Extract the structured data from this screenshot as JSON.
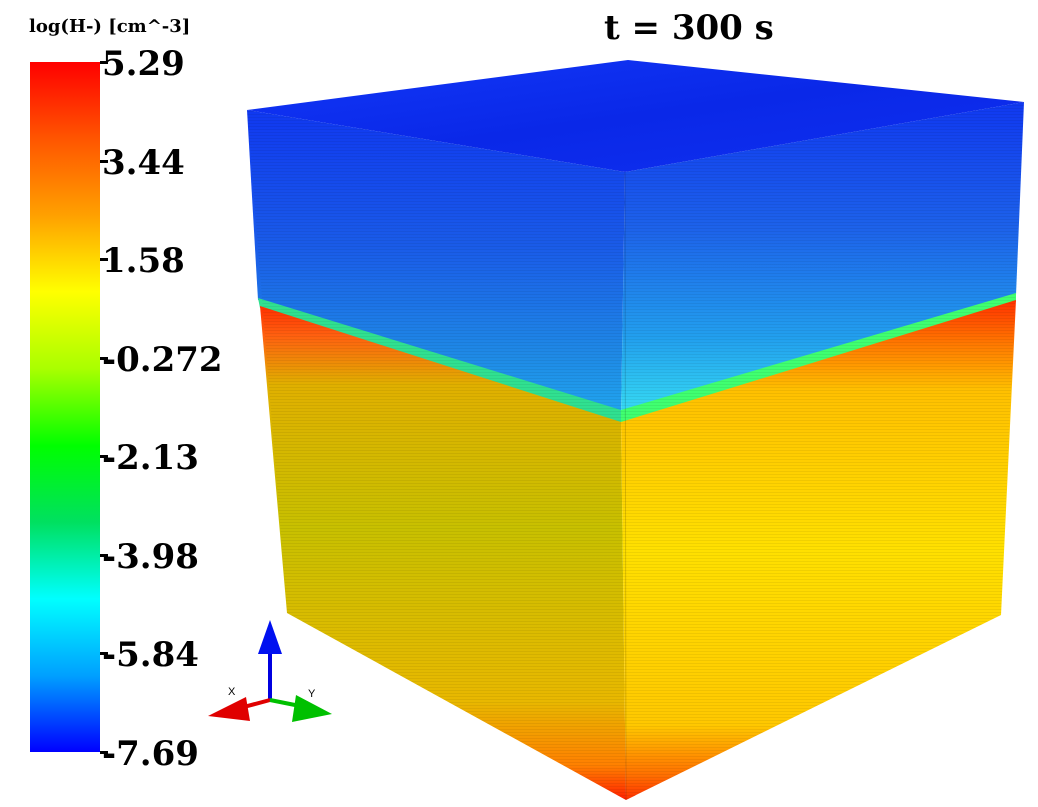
{
  "colorbar": {
    "title": "log(H-) [cm^-3]",
    "max": 5.29,
    "min": -7.69,
    "tick_labels": [
      "5.29",
      "3.44",
      "1.58",
      "-0.272",
      "-2.13",
      "-3.98",
      "-5.84",
      "-7.69"
    ],
    "colormap": [
      "#0000ff",
      "#00a0ff",
      "#00ffff",
      "#00e060",
      "#00ff00",
      "#aaff00",
      "#ffff00",
      "#ffa000",
      "#ff5500",
      "#ff0000"
    ]
  },
  "time_label": "t = 300 s",
  "axes_triad": {
    "x_label": "X",
    "y_label": "Y",
    "colors": {
      "x": "#e00000",
      "y": "#00c000",
      "z": "#0000e0"
    }
  },
  "scene": {
    "top_color": "#1030f0",
    "upper_colors": [
      "#1030f0",
      "#2060f0",
      "#20a8f0",
      "#30d8f0"
    ],
    "interface_colors": [
      "#00e0ff",
      "#40ff80",
      "#ff5020",
      "#ff3000",
      "#ff6010"
    ],
    "lower_colors": [
      "#ffd000",
      "#d0c000",
      "#ffe000",
      "#ff4000"
    ]
  }
}
